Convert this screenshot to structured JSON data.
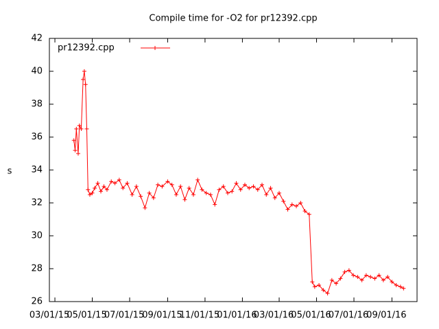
{
  "chart_data": {
    "type": "line",
    "title": "Compile time for -O2 for pr12392.cpp",
    "y_label": "s",
    "x": [
      "2015-04-01",
      "2015-04-03",
      "2015-04-05",
      "2015-04-08",
      "2015-04-10",
      "2015-04-13",
      "2015-04-16",
      "2015-04-18",
      "2015-04-20",
      "2015-04-22",
      "2015-04-24",
      "2015-04-27",
      "2015-05-01",
      "2015-05-05",
      "2015-05-10",
      "2015-05-15",
      "2015-05-20",
      "2015-05-25",
      "2015-06-01",
      "2015-06-07",
      "2015-06-14",
      "2015-06-20",
      "2015-06-27",
      "2015-07-05",
      "2015-07-12",
      "2015-07-19",
      "2015-07-26",
      "2015-08-02",
      "2015-08-09",
      "2015-08-16",
      "2015-08-23",
      "2015-09-01",
      "2015-09-08",
      "2015-09-15",
      "2015-09-22",
      "2015-09-29",
      "2015-10-06",
      "2015-10-13",
      "2015-10-20",
      "2015-10-27",
      "2015-11-03",
      "2015-11-10",
      "2015-11-17",
      "2015-11-24",
      "2015-12-01",
      "2015-12-08",
      "2015-12-15",
      "2015-12-22",
      "2015-12-29",
      "2016-01-05",
      "2016-01-12",
      "2016-01-19",
      "2016-01-26",
      "2016-02-02",
      "2016-02-09",
      "2016-02-16",
      "2016-02-23",
      "2016-03-01",
      "2016-03-08",
      "2016-03-15",
      "2016-03-22",
      "2016-03-29",
      "2016-04-05",
      "2016-04-12",
      "2016-04-19",
      "2016-04-24",
      "2016-04-28",
      "2016-05-05",
      "2016-05-12",
      "2016-05-19",
      "2016-05-26",
      "2016-06-02",
      "2016-06-09",
      "2016-06-16",
      "2016-06-23",
      "2016-06-30",
      "2016-07-07",
      "2016-07-14",
      "2016-07-21",
      "2016-07-28",
      "2016-08-04",
      "2016-08-11",
      "2016-08-18",
      "2016-08-25",
      "2016-09-01",
      "2016-09-08",
      "2016-09-15",
      "2016-09-20"
    ],
    "series": [
      {
        "name": "pr12392.cpp",
        "color": "#ff0000",
        "values": [
          35.8,
          35.2,
          36.5,
          35.0,
          36.7,
          36.5,
          39.5,
          40.0,
          39.2,
          36.5,
          32.8,
          32.5,
          32.6,
          32.9,
          33.2,
          32.7,
          33.0,
          32.8,
          33.3,
          33.2,
          33.4,
          32.9,
          33.2,
          32.5,
          33.0,
          32.4,
          31.7,
          32.6,
          32.3,
          33.1,
          33.0,
          33.3,
          33.1,
          32.5,
          33.0,
          32.2,
          32.9,
          32.5,
          33.4,
          32.8,
          32.6,
          32.5,
          31.9,
          32.8,
          33.0,
          32.6,
          32.7,
          33.2,
          32.8,
          33.1,
          32.9,
          33.0,
          32.8,
          33.1,
          32.5,
          32.9,
          32.3,
          32.6,
          32.1,
          31.6,
          31.9,
          31.8,
          32.0,
          31.5,
          31.3,
          27.2,
          26.9,
          27.0,
          26.7,
          26.5,
          27.3,
          27.1,
          27.4,
          27.8,
          27.9,
          27.6,
          27.5,
          27.3,
          27.6,
          27.5,
          27.4,
          27.6,
          27.3,
          27.5,
          27.2,
          27.0,
          26.9,
          26.8
        ]
      }
    ],
    "xlim": [
      "2015-02-20",
      "2016-10-12"
    ],
    "xticks": [
      {
        "value": "2015-03-01",
        "label": "03/01/15"
      },
      {
        "value": "2015-05-01",
        "label": "05/01/15"
      },
      {
        "value": "2015-07-01",
        "label": "07/01/15"
      },
      {
        "value": "2015-09-01",
        "label": "09/01/15"
      },
      {
        "value": "2015-11-01",
        "label": "11/01/15"
      },
      {
        "value": "2016-01-01",
        "label": "01/01/16"
      },
      {
        "value": "2016-03-01",
        "label": "03/01/16"
      },
      {
        "value": "2016-05-01",
        "label": "05/01/16"
      },
      {
        "value": "2016-07-01",
        "label": "07/01/16"
      },
      {
        "value": "2016-09-01",
        "label": "09/01/16"
      }
    ],
    "ylim": [
      26,
      42
    ],
    "yticks": [
      26,
      28,
      30,
      32,
      34,
      36,
      38,
      40,
      42
    ],
    "grid": false,
    "legend": "top-left",
    "marker": "+"
  }
}
